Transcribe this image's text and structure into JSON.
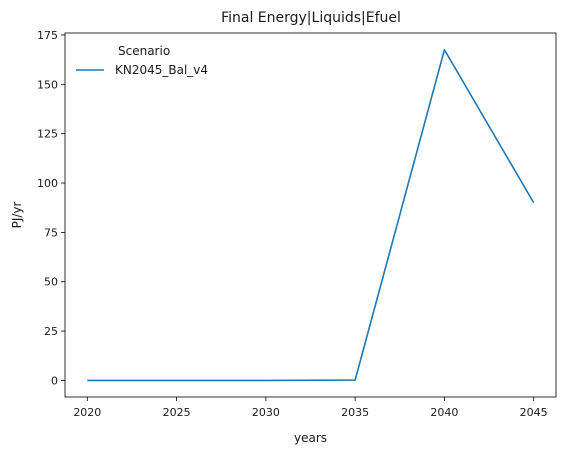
{
  "chart_data": {
    "type": "line",
    "title": "Final Energy|Liquids|Efuel",
    "xlabel": "years",
    "ylabel": "PJ/yr",
    "xlim": [
      2018.75,
      2046.25
    ],
    "ylim": [
      -8.4,
      176.0
    ],
    "xticks": [
      2020,
      2025,
      2030,
      2035,
      2040,
      2045
    ],
    "yticks": [
      0,
      25,
      50,
      75,
      100,
      125,
      150,
      175
    ],
    "grid": false,
    "legend": {
      "title": "Scenario",
      "placement": "top-left"
    },
    "x": [
      2020,
      2025,
      2030,
      2035,
      2040,
      2045
    ],
    "series": [
      {
        "name": "KN2045_Bal_v4",
        "color": "#1f77b4",
        "values": [
          0,
          0,
          0,
          0.2,
          167.5,
          90.0
        ]
      }
    ]
  }
}
